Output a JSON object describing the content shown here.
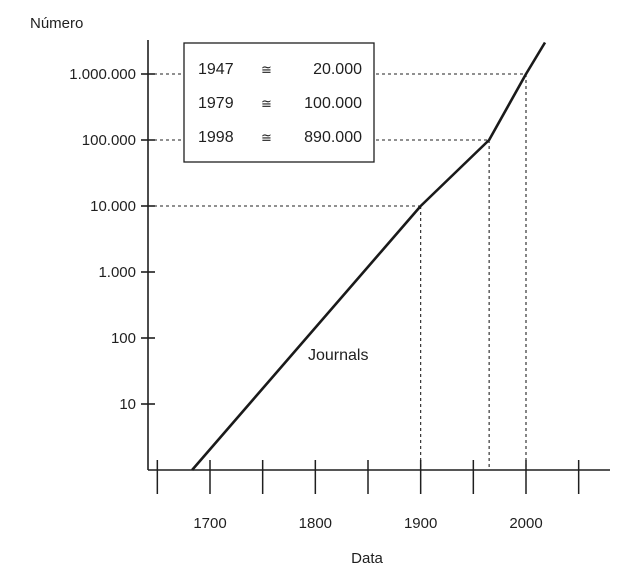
{
  "chart_data": {
    "type": "line",
    "xlabel": "Data",
    "ylabel": "Número",
    "x_ticks": [
      1700,
      1800,
      1900,
      2000
    ],
    "y_ticks": [
      {
        "value": 10,
        "label": "10"
      },
      {
        "value": 100,
        "label": "100"
      },
      {
        "value": 1000,
        "label": "1.000"
      },
      {
        "value": 10000,
        "label": "10.000"
      },
      {
        "value": 100000,
        "label": "100.000"
      },
      {
        "value": 1000000,
        "label": "1.000.000"
      }
    ],
    "xlim": [
      1650,
      2070
    ],
    "ylim": [
      1,
      3000000
    ],
    "y_scale": "log",
    "grid": false,
    "series": [
      {
        "name": "Journals",
        "x": [
          1683,
          1900,
          1965,
          2000,
          2018
        ],
        "y": [
          1,
          10000,
          100000,
          1000000,
          3000000
        ]
      }
    ],
    "reference_points": [
      {
        "x": 1900,
        "y": 10000
      },
      {
        "x": 1965,
        "y": 100000
      },
      {
        "x": 2000,
        "y": 1000000
      }
    ],
    "legend_box": {
      "placement": "top-left",
      "rows": [
        {
          "year": "1947",
          "symbol": "≅",
          "value": "20.000"
        },
        {
          "year": "1979",
          "symbol": "≅",
          "value": "100.000"
        },
        {
          "year": "1998",
          "symbol": "≅",
          "value": "890.000"
        }
      ]
    },
    "colors": {
      "axis": "#1f1f1f",
      "line": "#1a1a1a",
      "reference": "#222222"
    }
  }
}
